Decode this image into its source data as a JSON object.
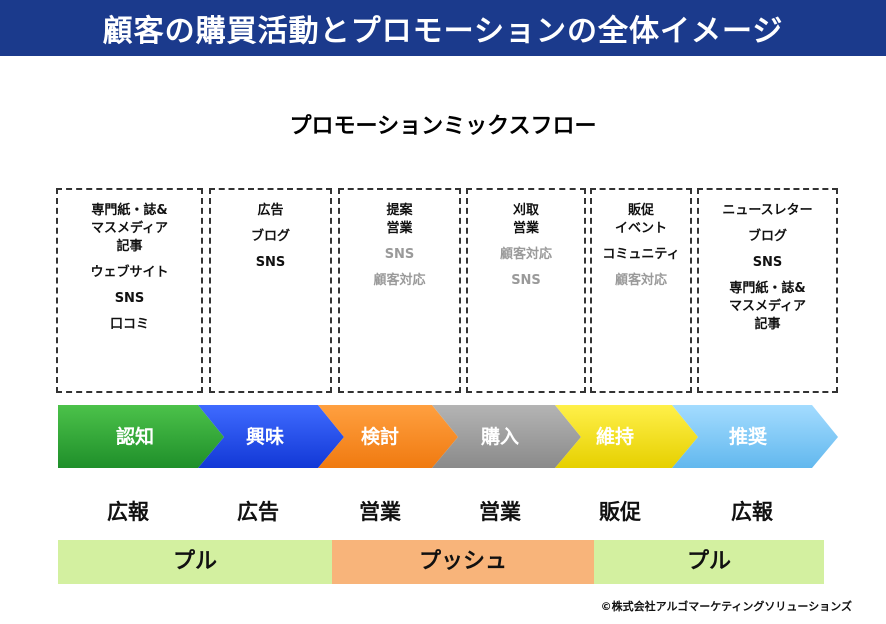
{
  "header": {
    "title": "顧客の購買活動とプロモーションの全体イメージ"
  },
  "subtitle": "プロモーションミックスフロー",
  "boxes": [
    {
      "items": [
        {
          "text": "専門紙・誌&\nマスメディア\n記事",
          "dim": false
        },
        {
          "text": "ウェブサイト",
          "dim": false
        },
        {
          "text": "SNS",
          "dim": false
        },
        {
          "text": "口コミ",
          "dim": false
        }
      ]
    },
    {
      "items": [
        {
          "text": "広告",
          "dim": false
        },
        {
          "text": "ブログ",
          "dim": false
        },
        {
          "text": "SNS",
          "dim": false
        }
      ]
    },
    {
      "items": [
        {
          "text": "提案\n営業",
          "dim": false
        },
        {
          "text": "SNS",
          "dim": true
        },
        {
          "text": "顧客対応",
          "dim": true
        }
      ]
    },
    {
      "items": [
        {
          "text": "刈取\n営業",
          "dim": false
        },
        {
          "text": "顧客対応",
          "dim": true
        },
        {
          "text": "SNS",
          "dim": true
        }
      ]
    },
    {
      "items": [
        {
          "text": "販促\nイベント",
          "dim": false
        },
        {
          "text": "コミュニティ",
          "dim": false
        },
        {
          "text": "顧客対応",
          "dim": true
        }
      ]
    },
    {
      "items": [
        {
          "text": "ニュースレター",
          "dim": false
        },
        {
          "text": "ブログ",
          "dim": false
        },
        {
          "text": "SNS",
          "dim": false
        },
        {
          "text": "専門紙・誌&\nマスメディア\n記事",
          "dim": false
        }
      ]
    }
  ],
  "stages": [
    {
      "label": "認知",
      "color": "#1f8f2a",
      "color_light": "#4cc24a"
    },
    {
      "label": "興味",
      "color": "#1238d6",
      "color_light": "#3f6bff"
    },
    {
      "label": "検討",
      "color": "#f07a10",
      "color_light": "#ffa040"
    },
    {
      "label": "購入",
      "color": "#8a8a8a",
      "color_light": "#b4b4b4"
    },
    {
      "label": "維持",
      "color": "#e6d000",
      "color_light": "#fff04a"
    },
    {
      "label": "推奨",
      "color": "#62b8ee",
      "color_light": "#a4dcff"
    }
  ],
  "departments": [
    "広報",
    "広告",
    "営業",
    "営業",
    "販促",
    "広報"
  ],
  "push_pull": [
    {
      "label": "プル",
      "color": "#d3f0a0"
    },
    {
      "label": "プッシュ",
      "color": "#f8b47a"
    },
    {
      "label": "プル",
      "color": "#d3f0a0"
    }
  ],
  "copyright": "©株式会社アルゴマーケティングソリューションズ"
}
